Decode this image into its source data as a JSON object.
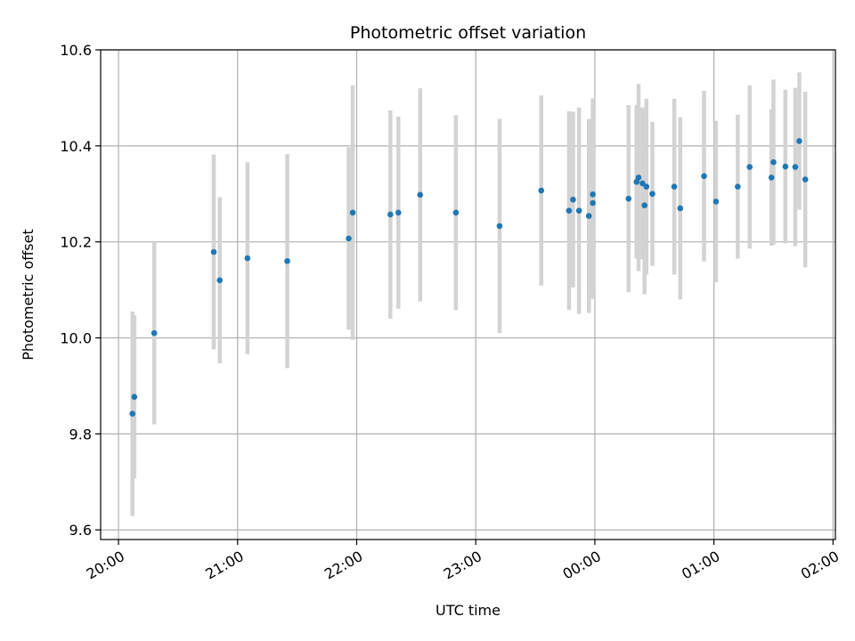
{
  "chart_data": {
    "type": "scatter",
    "title": "Photometric offset variation",
    "xlabel": "UTC time",
    "ylabel": "Photometric offset",
    "x_unit": "hours (UTC, continuing past midnight)",
    "xlim": [
      19.85,
      26.02
    ],
    "ylim": [
      9.58,
      10.6
    ],
    "xticks": [
      {
        "value": 20,
        "label": "20:00"
      },
      {
        "value": 21,
        "label": "21:00"
      },
      {
        "value": 22,
        "label": "22:00"
      },
      {
        "value": 23,
        "label": "23:00"
      },
      {
        "value": 24,
        "label": "00:00"
      },
      {
        "value": 25,
        "label": "01:00"
      },
      {
        "value": 26,
        "label": "02:00"
      }
    ],
    "yticks": [
      {
        "value": 9.6,
        "label": "9.6"
      },
      {
        "value": 9.8,
        "label": "9.8"
      },
      {
        "value": 10.0,
        "label": "10.0"
      },
      {
        "value": 10.2,
        "label": "10.2"
      },
      {
        "value": 10.4,
        "label": "10.4"
      },
      {
        "value": 10.6,
        "label": "10.6"
      }
    ],
    "grid": true,
    "colors": {
      "point": "#1f77b4",
      "errorbar": "#d3d3d3",
      "grid": "#b0b0b0"
    },
    "points": [
      {
        "x": 20.117,
        "y": 9.842,
        "err": 0.213
      },
      {
        "x": 20.133,
        "y": 9.877,
        "err": 0.17
      },
      {
        "x": 20.3,
        "y": 10.01,
        "err": 0.19
      },
      {
        "x": 20.8,
        "y": 10.179,
        "err": 0.203
      },
      {
        "x": 20.85,
        "y": 10.12,
        "err": 0.173
      },
      {
        "x": 21.083,
        "y": 10.166,
        "err": 0.2
      },
      {
        "x": 21.417,
        "y": 10.16,
        "err": 0.223
      },
      {
        "x": 21.933,
        "y": 10.207,
        "err": 0.19
      },
      {
        "x": 21.967,
        "y": 10.261,
        "err": 0.265
      },
      {
        "x": 22.283,
        "y": 10.257,
        "err": 0.217
      },
      {
        "x": 22.35,
        "y": 10.261,
        "err": 0.2
      },
      {
        "x": 22.533,
        "y": 10.298,
        "err": 0.222
      },
      {
        "x": 22.833,
        "y": 10.261,
        "err": 0.203
      },
      {
        "x": 23.2,
        "y": 10.233,
        "err": 0.223
      },
      {
        "x": 23.55,
        "y": 10.307,
        "err": 0.198
      },
      {
        "x": 23.783,
        "y": 10.265,
        "err": 0.207
      },
      {
        "x": 23.817,
        "y": 10.288,
        "err": 0.183
      },
      {
        "x": 23.867,
        "y": 10.265,
        "err": 0.215
      },
      {
        "x": 23.95,
        "y": 10.254,
        "err": 0.202
      },
      {
        "x": 23.983,
        "y": 10.299,
        "err": 0.2
      },
      {
        "x": 23.983,
        "y": 10.281,
        "err": 0.2
      },
      {
        "x": 24.283,
        "y": 10.29,
        "err": 0.195
      },
      {
        "x": 24.35,
        "y": 10.325,
        "err": 0.16
      },
      {
        "x": 24.367,
        "y": 10.334,
        "err": 0.195
      },
      {
        "x": 24.4,
        "y": 10.322,
        "err": 0.158
      },
      {
        "x": 24.417,
        "y": 10.276,
        "err": 0.185
      },
      {
        "x": 24.433,
        "y": 10.315,
        "err": 0.183
      },
      {
        "x": 24.483,
        "y": 10.3,
        "err": 0.15
      },
      {
        "x": 24.667,
        "y": 10.315,
        "err": 0.183
      },
      {
        "x": 24.717,
        "y": 10.27,
        "err": 0.19
      },
      {
        "x": 24.917,
        "y": 10.337,
        "err": 0.178
      },
      {
        "x": 25.017,
        "y": 10.284,
        "err": 0.168
      },
      {
        "x": 25.2,
        "y": 10.315,
        "err": 0.15
      },
      {
        "x": 25.3,
        "y": 10.356,
        "err": 0.17
      },
      {
        "x": 25.483,
        "y": 10.334,
        "err": 0.142
      },
      {
        "x": 25.5,
        "y": 10.366,
        "err": 0.172
      },
      {
        "x": 25.6,
        "y": 10.357,
        "err": 0.16
      },
      {
        "x": 25.683,
        "y": 10.356,
        "err": 0.165
      },
      {
        "x": 25.717,
        "y": 10.41,
        "err": 0.143
      },
      {
        "x": 25.767,
        "y": 10.33,
        "err": 0.183
      }
    ]
  }
}
